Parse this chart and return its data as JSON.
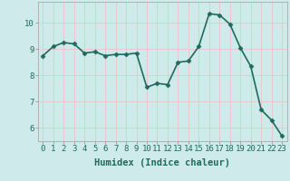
{
  "x": [
    0,
    1,
    2,
    3,
    4,
    5,
    6,
    7,
    8,
    9,
    10,
    11,
    12,
    13,
    14,
    15,
    16,
    17,
    18,
    19,
    20,
    21,
    22,
    23
  ],
  "y": [
    8.75,
    9.1,
    9.25,
    9.2,
    8.85,
    8.9,
    8.75,
    8.8,
    8.8,
    8.85,
    7.55,
    7.7,
    7.65,
    8.5,
    8.55,
    9.1,
    10.35,
    10.3,
    9.95,
    9.05,
    8.35,
    6.7,
    6.3,
    5.7
  ],
  "line_color": "#1e6b5e",
  "marker": "D",
  "marker_size": 2.5,
  "bg_color": "#ceeaea",
  "grid_color": "#e8c8c8",
  "xlabel": "Humidex (Indice chaleur)",
  "ylim": [
    5.5,
    10.8
  ],
  "xlim": [
    -0.5,
    23.5
  ],
  "yticks": [
    6,
    7,
    8,
    9,
    10
  ],
  "xticks": [
    0,
    1,
    2,
    3,
    4,
    5,
    6,
    7,
    8,
    9,
    10,
    11,
    12,
    13,
    14,
    15,
    16,
    17,
    18,
    19,
    20,
    21,
    22,
    23
  ],
  "tick_fontsize": 6.5,
  "xlabel_fontsize": 7.5,
  "linewidth": 1.2
}
